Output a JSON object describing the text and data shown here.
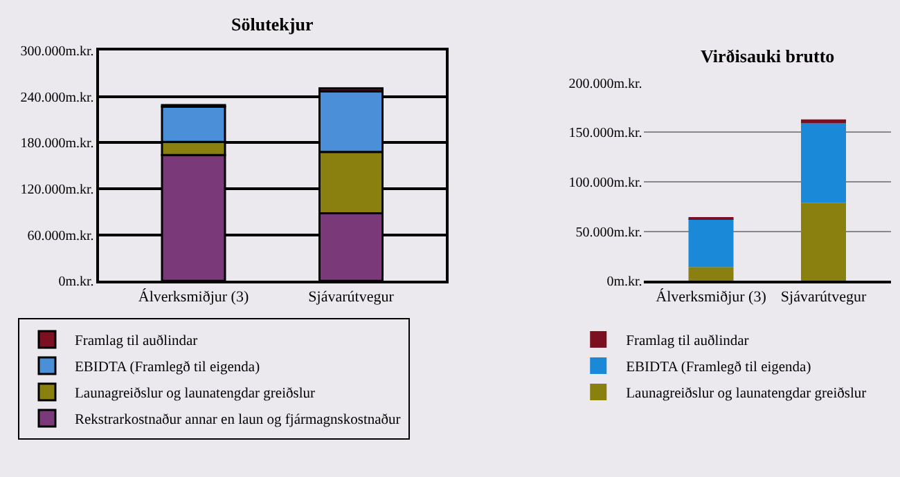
{
  "chart_data": [
    {
      "type": "bar",
      "title": "Sölutekjur",
      "stacked": true,
      "categories": [
        "Álverksmiðjur (3)",
        "Sjávarútvegur"
      ],
      "ylim": [
        0,
        300000
      ],
      "yticks": [
        {
          "value": 0,
          "label": "0m.kr."
        },
        {
          "value": 60000,
          "label": "60.000m.kr."
        },
        {
          "value": 120000,
          "label": "120.000m.kr."
        },
        {
          "value": 180000,
          "label": "180.000m.kr."
        },
        {
          "value": 240000,
          "label": "240.000m.kr."
        },
        {
          "value": 300000,
          "label": "300.000m.kr."
        }
      ],
      "grid": "y",
      "legend": "bottom left",
      "series": [
        {
          "name": "Rekstrarkostnaður annar en laun og fjármagnskostnaður",
          "color": "#7a3a7a",
          "values": [
            164000,
            88000
          ]
        },
        {
          "name": "Launagreiðslur og launatengdar greiðslur",
          "color": "#8a8010",
          "values": [
            17000,
            80000
          ]
        },
        {
          "name": "EBIDTA (Framlegð til eigenda)",
          "color": "#4a8fd8",
          "values": [
            46000,
            79000
          ]
        },
        {
          "name": "Framlag til auðlindar",
          "color": "#7b1020",
          "values": [
            2000,
            4000
          ]
        }
      ]
    },
    {
      "type": "bar",
      "title": "Virðisauki brutto",
      "stacked": true,
      "categories": [
        "Álverksmiðjur (3)",
        "Sjávarútvegur"
      ],
      "ylim": [
        0,
        200000
      ],
      "yticks": [
        {
          "value": 0,
          "label": "0m.kr."
        },
        {
          "value": 50000,
          "label": "50.000m.kr."
        },
        {
          "value": 100000,
          "label": "100.000m.kr."
        },
        {
          "value": 150000,
          "label": "150.000m.kr."
        },
        {
          "value": 200000,
          "label": "200.000m.kr."
        }
      ],
      "grid": "y",
      "legend": "bottom",
      "series": [
        {
          "name": "Launagreiðslur og launatengdar greiðslur",
          "color": "#8a8010",
          "values": [
            14000,
            79000
          ]
        },
        {
          "name": "EBIDTA (Framlegð til eigenda)",
          "color": "#1a8ad8",
          "values": [
            49000,
            80000
          ]
        },
        {
          "name": "Framlag til auðlindar",
          "color": "#7b1020",
          "values": [
            1000,
            4000
          ]
        }
      ]
    }
  ]
}
